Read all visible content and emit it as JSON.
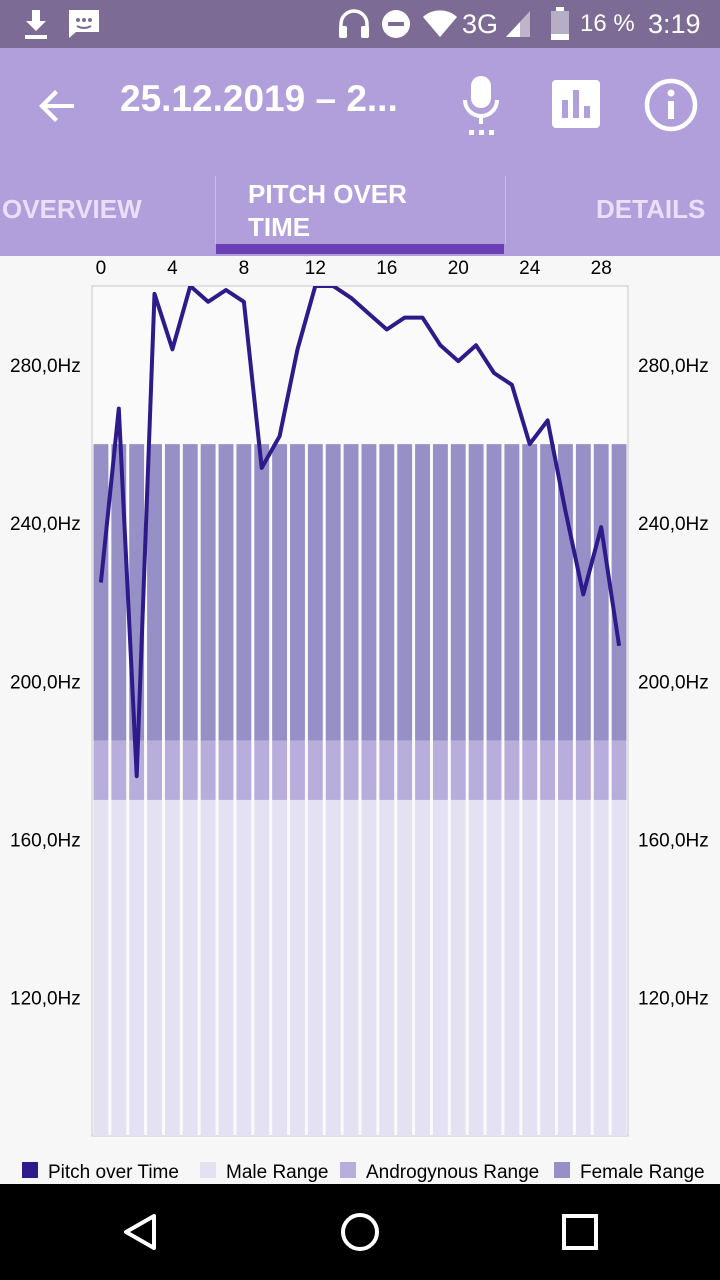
{
  "status_bar": {
    "network": "3G",
    "battery": "16 %",
    "time": "3:19",
    "icons": [
      "download-icon",
      "message-icon",
      "headphones-icon",
      "dnd-icon",
      "wifi-icon",
      "signal-icon",
      "battery-icon"
    ]
  },
  "toolbar": {
    "title": "25.12.2019 – 2...",
    "icons": [
      "back-arrow-icon",
      "microphone-icon",
      "bar-chart-icon",
      "info-icon"
    ]
  },
  "tabs": [
    {
      "label": "OVERVIEW",
      "active": false
    },
    {
      "label": "PITCH OVER TIME",
      "label_line1": "PITCH OVER",
      "label_line2": "TIME",
      "active": true
    },
    {
      "label": "DETAILS",
      "active": false
    }
  ],
  "colors": {
    "status_bar": "#7c6b94",
    "toolbar": "#b19fdb",
    "tab_indicator": "#6a3fb6",
    "pitch_line": "#2e1a8a",
    "male_range": "#e4e2f2",
    "androgynous_range": "#b8aedc",
    "female_range": "#9690c6"
  },
  "chart_data": {
    "type": "line",
    "x_ticks": [
      "0",
      "4",
      "8",
      "12",
      "16",
      "20",
      "24",
      "28"
    ],
    "y_ticks_left": [
      "280,0Hz",
      "240,0Hz",
      "200,0Hz",
      "160,0Hz",
      "120,0Hz"
    ],
    "y_ticks_right": [
      "280,0Hz",
      "240,0Hz",
      "200,0Hz",
      "160,0Hz",
      "120,0Hz"
    ],
    "y_tick_values": [
      280,
      240,
      200,
      160,
      120
    ],
    "xlim": [
      -0.5,
      29.5
    ],
    "ylim": [
      85,
      300
    ],
    "bar_count": 30,
    "ranges": [
      {
        "name": "Male Range",
        "min": 85,
        "max": 170
      },
      {
        "name": "Androgynous Range",
        "min": 170,
        "max": 185
      },
      {
        "name": "Female Range",
        "min": 185,
        "max": 260
      }
    ],
    "series": [
      {
        "name": "Pitch over Time",
        "x": [
          0,
          1,
          2,
          3,
          4,
          5,
          6,
          7,
          8,
          9,
          10,
          11,
          12,
          13,
          14,
          15,
          16,
          17,
          18,
          19,
          20,
          21,
          22,
          23,
          24,
          25,
          26,
          27,
          28,
          29
        ],
        "values": [
          225,
          269,
          176,
          298,
          284,
          300,
          296,
          299,
          296,
          254,
          262,
          284,
          300,
          300,
          297,
          293,
          289,
          292,
          292,
          285,
          281,
          285,
          278,
          275,
          260,
          266,
          243,
          222,
          239,
          209
        ]
      }
    ]
  },
  "legend": [
    {
      "label": "Pitch over Time",
      "color": "#2e1a8a"
    },
    {
      "label": "Male Range",
      "color": "#e4e2f2"
    },
    {
      "label": "Androgynous Range",
      "color": "#b8aedc"
    },
    {
      "label": "Female Range",
      "color": "#9690c6"
    }
  ],
  "navbar": {
    "icons": [
      "back-triangle-icon",
      "home-circle-icon",
      "recents-square-icon"
    ]
  }
}
